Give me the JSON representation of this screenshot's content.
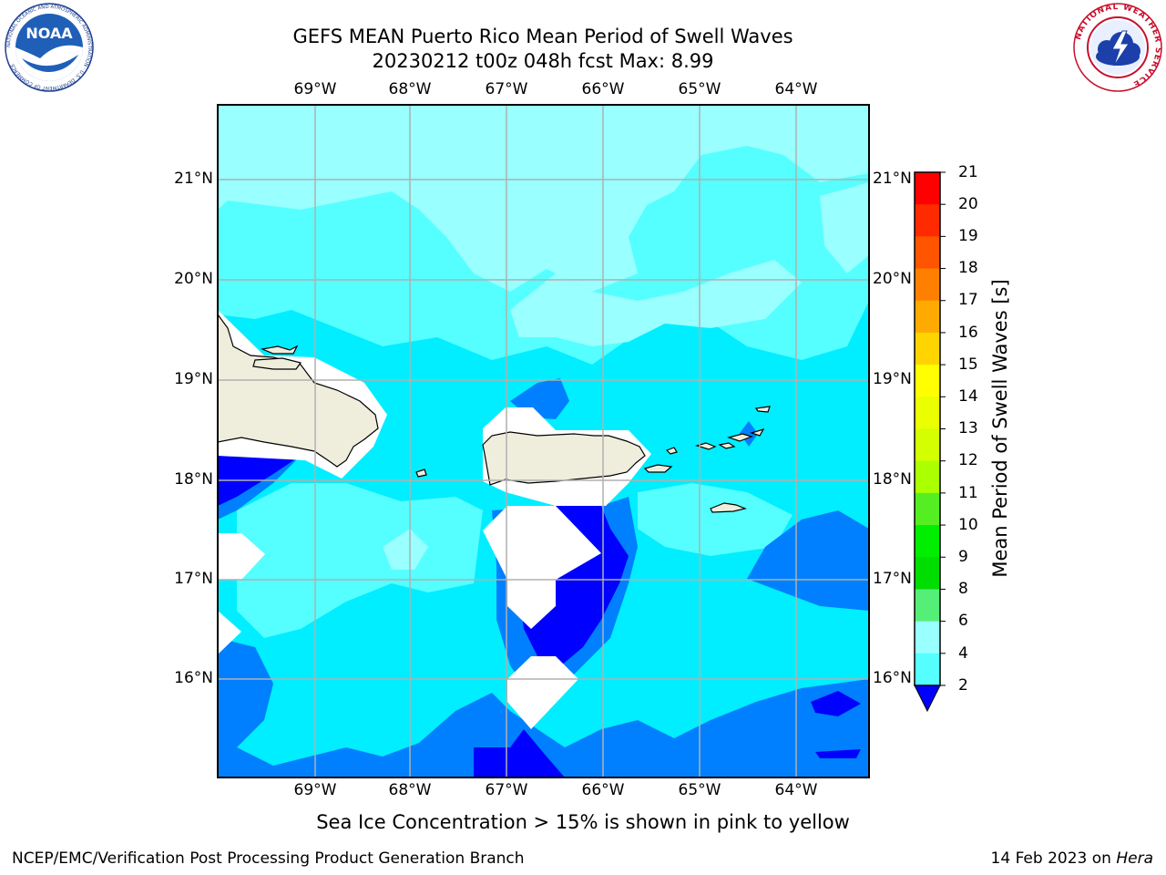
{
  "header": {
    "title": "GEFS MEAN Puerto Rico Mean Period of Swell Waves",
    "subtitle": "20230212 t00z 048h fcst   Max: 8.99"
  },
  "logos": {
    "left": {
      "name": "NOAA",
      "text": "NOAA",
      "ring_text": "NATIONAL OCEANIC AND ATMOSPHERIC ADMINISTRATION · U.S. DEPARTMENT OF COMMERCE"
    },
    "right": {
      "name": "National Weather Service",
      "ring_text": "NATIONAL WEATHER SERVICE"
    }
  },
  "map": {
    "lon_labels": [
      "69°W",
      "68°W",
      "67°W",
      "66°W",
      "65°W",
      "64°W"
    ],
    "lat_labels": [
      "21°N",
      "20°N",
      "19°N",
      "18°N",
      "17°N",
      "16°N"
    ],
    "colors": {
      "c_2_4": "#0080ff",
      "c_4_6": "#00eeff",
      "c_6_8": "#55ffff",
      "c_8_9": "#99ffff",
      "under_2": "#0000ff",
      "land": "#efeddc",
      "masked": "#ffffff",
      "grid": "#b0b0b0"
    }
  },
  "colorbar": {
    "title": "Mean Period of Swell Waves [s]",
    "labels": [
      "21",
      "20",
      "19",
      "18",
      "17",
      "16",
      "15",
      "14",
      "13",
      "12",
      "11",
      "10",
      "9",
      "8",
      "6",
      "4",
      "2"
    ],
    "colors": [
      "#ff0000",
      "#ff2a00",
      "#ff5500",
      "#ff8000",
      "#ffaa00",
      "#ffd400",
      "#ffff00",
      "#eaff00",
      "#d4ff00",
      "#aaff00",
      "#55ee22",
      "#00ee00",
      "#00dd00",
      "#55ee77",
      "#99ffff",
      "#55ffff",
      "#00eeff",
      "#0080ff"
    ],
    "extend_color": "#0000ff"
  },
  "note": "Sea Ice Concentration > 15% is shown in pink to yellow",
  "footer": {
    "left": "NCEP/EMC/Verification Post Processing Product Generation Branch",
    "right_date": "14 Feb 2023 on ",
    "right_host": "Hera"
  }
}
